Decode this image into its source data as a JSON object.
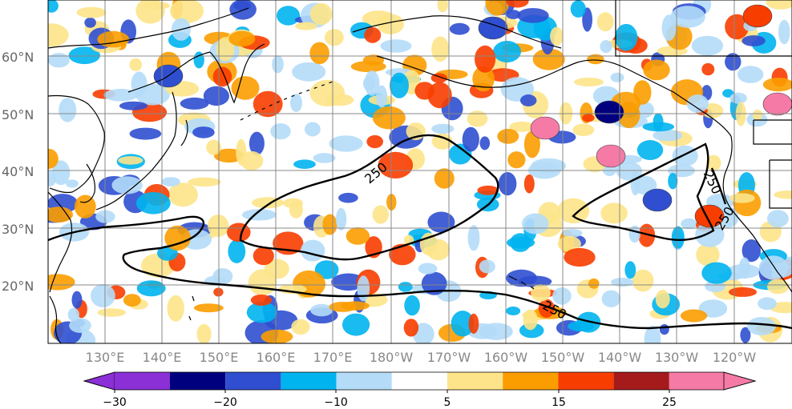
{
  "map": {
    "lat_labels": [
      "60°N",
      "50°N",
      "40°N",
      "30°N",
      "20°N"
    ],
    "lon_labels": [
      "130°E",
      "140°E",
      "150°E",
      "160°E",
      "170°E",
      "180°W",
      "170°W",
      "160°W",
      "150°W",
      "140°W",
      "130°W",
      "120°W"
    ],
    "contour_value": "250",
    "contour_labels": [
      "250",
      "250",
      "250",
      "250"
    ]
  },
  "colorbar": {
    "colors": [
      "#8b2fd6",
      "#00007f",
      "#2f4fd0",
      "#00b4f0",
      "#b4dcf8",
      "#ffffff",
      "#fde48a",
      "#fb9d00",
      "#f83d00",
      "#a51b1b",
      "#f57aa6"
    ],
    "tick_labels": [
      "−30",
      "−20",
      "−10",
      "5",
      "15",
      "25"
    ],
    "ticks": [
      -30,
      -20,
      -10,
      5,
      15,
      25
    ]
  }
}
